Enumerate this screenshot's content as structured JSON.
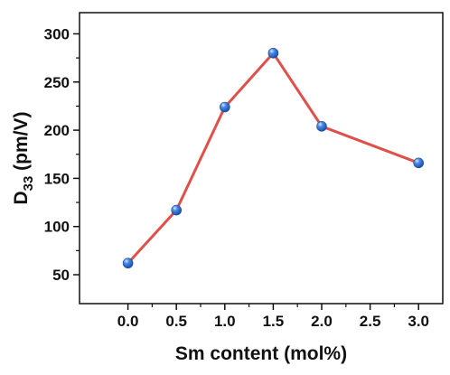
{
  "chart_data": {
    "type": "line",
    "title": "",
    "xlabel": "Sm content (mol%)",
    "ylabel": {
      "base": "D",
      "subscript": "33",
      "rest": " (pm/V)"
    },
    "x": [
      0.0,
      0.5,
      1.0,
      1.5,
      2.0,
      3.0
    ],
    "series": [
      {
        "values": [
          62,
          117,
          224,
          280,
          204,
          166
        ],
        "line_color": "#e0504a",
        "marker_color": "#3a78d8"
      }
    ],
    "xlim": [
      -0.5,
      3.25
    ],
    "ylim": [
      20,
      322
    ],
    "xticks": [
      0.0,
      0.5,
      1.0,
      1.5,
      2.0,
      2.5,
      3.0
    ],
    "xtick_labels": [
      "0.0",
      "0.5",
      "1.0",
      "1.5",
      "2.0",
      "2.5",
      "3.0"
    ],
    "yticks": [
      50,
      100,
      150,
      200,
      250,
      300
    ],
    "ytick_labels": [
      "50",
      "100",
      "150",
      "200",
      "250",
      "300"
    ],
    "grid": false,
    "legend": "none"
  }
}
